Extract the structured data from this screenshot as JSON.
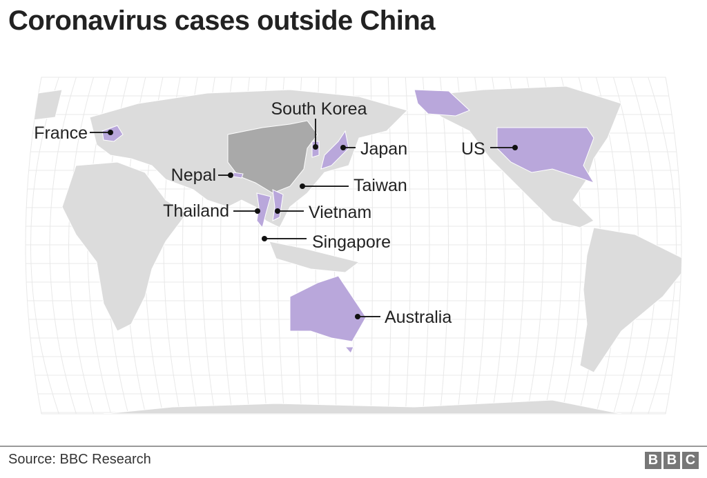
{
  "title": "Coronavirus cases outside China",
  "colors": {
    "land": "#dcdcdc",
    "china": "#a9a9a9",
    "affected": "#b9a7db",
    "grid": "#e6e6e6",
    "border": "#ffffff"
  },
  "map": {
    "projection": "Robinson (Pacific-centred)",
    "highlighted_country": "China",
    "labels": [
      "France",
      "South Korea",
      "Japan",
      "US",
      "Nepal",
      "Taiwan",
      "Thailand",
      "Vietnam",
      "Singapore",
      "Australia"
    ]
  },
  "footer": {
    "source": "Source:  BBC Research",
    "logo": [
      "B",
      "B",
      "C"
    ]
  }
}
